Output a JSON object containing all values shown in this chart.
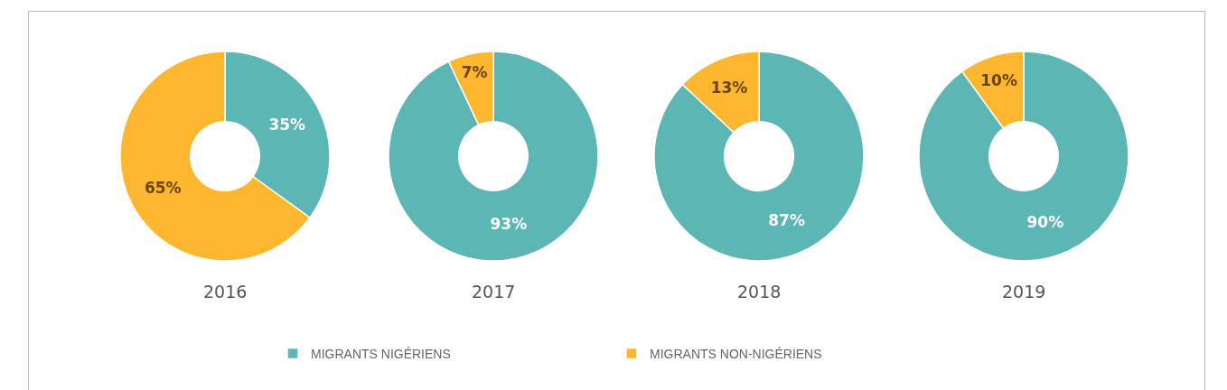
{
  "chart_data": {
    "type": "donut",
    "categories": [
      "MIGRANTS NIGÉRIENS",
      "MIGRANTS NON-NIGÉRIENS"
    ],
    "colors": [
      "#5cb6b3",
      "#fdb72e"
    ],
    "legend": "bottom",
    "series": [
      {
        "name": "2016",
        "values": [
          35,
          65
        ],
        "value_labels": [
          "35%",
          "65%"
        ]
      },
      {
        "name": "2017",
        "values": [
          93,
          7
        ],
        "value_labels": [
          "93%",
          "7%"
        ]
      },
      {
        "name": "2018",
        "values": [
          87,
          13
        ],
        "value_labels": [
          "87%",
          "13%"
        ]
      },
      {
        "name": "2019",
        "values": [
          90,
          10
        ],
        "value_labels": [
          "90%",
          "10%"
        ]
      }
    ]
  }
}
